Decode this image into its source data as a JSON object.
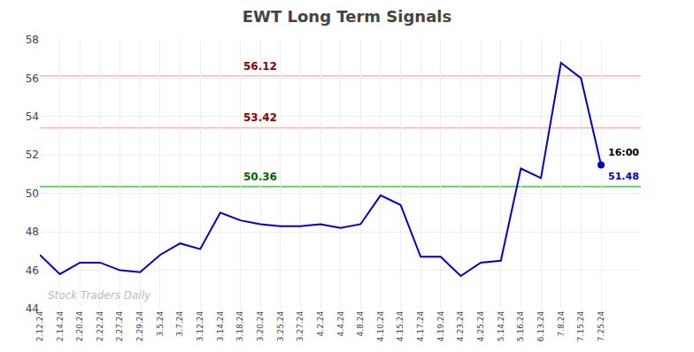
{
  "chart_data": {
    "type": "line",
    "title": "EWT Long Term Signals",
    "categories": [
      "2.12.24",
      "2.14.24",
      "2.20.24",
      "2.22.24",
      "2.27.24",
      "2.29.24",
      "3.5.24",
      "3.7.24",
      "3.12.24",
      "3.14.24",
      "3.18.24",
      "3.20.24",
      "3.25.24",
      "3.27.24",
      "4.2.24",
      "4.4.24",
      "4.8.24",
      "4.10.24",
      "4.15.24",
      "4.17.24",
      "4.19.24",
      "4.23.24",
      "4.25.24",
      "5.14.24",
      "5.16.24",
      "6.13.24",
      "7.8.24",
      "7.15.24",
      "7.25.24"
    ],
    "values": [
      46.8,
      45.8,
      46.4,
      46.4,
      46.0,
      45.9,
      46.8,
      47.4,
      47.1,
      49.0,
      48.6,
      48.4,
      48.3,
      48.3,
      48.4,
      48.2,
      48.4,
      49.9,
      49.4,
      46.7,
      46.7,
      45.7,
      46.4,
      46.5,
      51.3,
      50.8,
      56.8,
      56.0,
      51.48
    ],
    "color": "#0000cc",
    "reference_lines": [
      {
        "value": 56.12,
        "color": "#ffb3b3",
        "label_color": "#8b0000"
      },
      {
        "value": 53.42,
        "color": "#ffb3b3",
        "label_color": "#8b0000"
      },
      {
        "value": 50.36,
        "color": "#33cc33",
        "label_color": "#006600"
      }
    ],
    "last_label": "16:00",
    "last_value": 51.48,
    "watermark": "Stock Traders Daily",
    "watermark_color": "#bbbbbb",
    "ylim": [
      44,
      58
    ],
    "yticks": [
      44,
      46,
      48,
      50,
      52,
      54,
      56,
      58
    ],
    "grid": true
  }
}
